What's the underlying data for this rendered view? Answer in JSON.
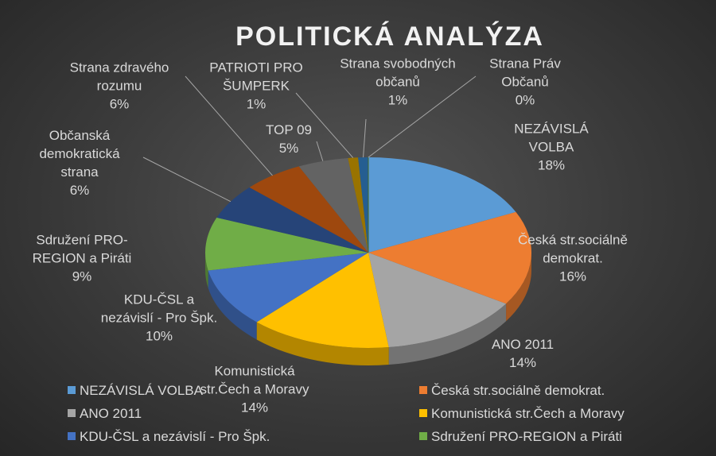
{
  "chart_data": {
    "type": "pie",
    "title": "POLITICKÁ ANALÝZA",
    "categories": [
      "NEZÁVISLÁ VOLBA",
      "Česká str.sociálně demokrat.",
      "ANO 2011",
      "Komunistická str.Čech a Moravy",
      "KDU-ČSL a nezávislí - Pro Špk.",
      "Sdružení PRO-REGION a Piráti",
      "Občanská demokratická strana",
      "Strana zdravého rozumu",
      "TOP 09",
      "PATRIOTI PRO ŠUMPERK",
      "Strana svobodných občanů",
      "Strana Práv Občanů"
    ],
    "values": [
      18,
      16,
      14,
      14,
      10,
      9,
      6,
      6,
      5,
      1,
      1,
      0
    ],
    "value_labels": [
      "18%",
      "16%",
      "14%",
      "14%",
      "10%",
      "9%",
      "6%",
      "6%",
      "5%",
      "1%",
      "1%",
      "0%"
    ],
    "colors": [
      "#5b9bd5",
      "#ed7d31",
      "#a5a5a5",
      "#ffc000",
      "#4472c4",
      "#70ad47",
      "#264478",
      "#9e480e",
      "#636363",
      "#997300",
      "#255e91",
      "#43682b"
    ],
    "legend": [
      "NEZÁVISLÁ VOLBA",
      "Česká str.sociálně demokrat.",
      "ANO 2011",
      "Komunistická str.Čech a Moravy",
      "KDU-ČSL a nezávislí - Pro Špk.",
      "Sdružení PRO-REGION a Piráti"
    ]
  }
}
